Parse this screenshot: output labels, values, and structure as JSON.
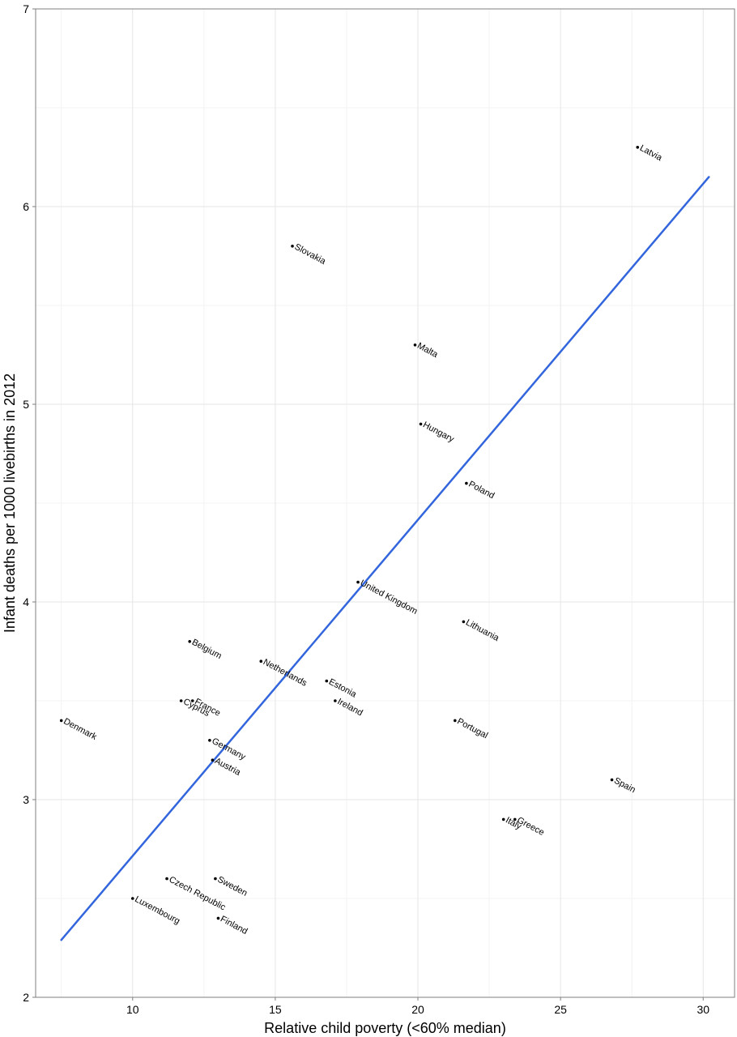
{
  "chart_data": {
    "type": "scatter",
    "title": "",
    "xlabel": "Relative child poverty (<60% median)",
    "ylabel": "Infant deaths per 1000 livebirths in 2012",
    "xlim": [
      6.6,
      31.1
    ],
    "ylim": [
      2,
      7
    ],
    "x_ticks": [
      10,
      15,
      20,
      25,
      30
    ],
    "y_ticks": [
      2,
      3,
      4,
      5,
      6,
      7
    ],
    "grid": true,
    "legend": "none",
    "point_color": "#000000",
    "trendline": {
      "color": "#3366dd",
      "x": [
        7.5,
        30.2
      ],
      "y": [
        2.29,
        6.15
      ]
    },
    "points": [
      {
        "name": "Latvia",
        "x": 27.7,
        "y": 6.3
      },
      {
        "name": "Slovakia",
        "x": 15.6,
        "y": 5.8
      },
      {
        "name": "Malta",
        "x": 19.9,
        "y": 5.3
      },
      {
        "name": "Hungary",
        "x": 20.1,
        "y": 4.9
      },
      {
        "name": "Poland",
        "x": 21.7,
        "y": 4.6
      },
      {
        "name": "United Kingdom",
        "x": 17.9,
        "y": 4.1
      },
      {
        "name": "Lithuania",
        "x": 21.6,
        "y": 3.9
      },
      {
        "name": "Belgium",
        "x": 12.0,
        "y": 3.8
      },
      {
        "name": "Netherlands",
        "x": 14.5,
        "y": 3.7
      },
      {
        "name": "Estonia",
        "x": 16.8,
        "y": 3.6
      },
      {
        "name": "Ireland",
        "x": 17.1,
        "y": 3.5
      },
      {
        "name": "France",
        "x": 12.1,
        "y": 3.5
      },
      {
        "name": "Cyprus",
        "x": 11.7,
        "y": 3.5
      },
      {
        "name": "Denmark",
        "x": 7.5,
        "y": 3.4
      },
      {
        "name": "Portugal",
        "x": 21.3,
        "y": 3.4
      },
      {
        "name": "Germany",
        "x": 12.7,
        "y": 3.3
      },
      {
        "name": "Austria",
        "x": 12.8,
        "y": 3.2
      },
      {
        "name": "Spain",
        "x": 26.8,
        "y": 3.1
      },
      {
        "name": "Italy",
        "x": 23.0,
        "y": 2.9
      },
      {
        "name": "Greece",
        "x": 23.4,
        "y": 2.9
      },
      {
        "name": "Sweden",
        "x": 12.9,
        "y": 2.6
      },
      {
        "name": "Czech Republic",
        "x": 11.2,
        "y": 2.6
      },
      {
        "name": "Luxembourg",
        "x": 10.0,
        "y": 2.5
      },
      {
        "name": "Finland",
        "x": 13.0,
        "y": 2.4
      }
    ]
  }
}
